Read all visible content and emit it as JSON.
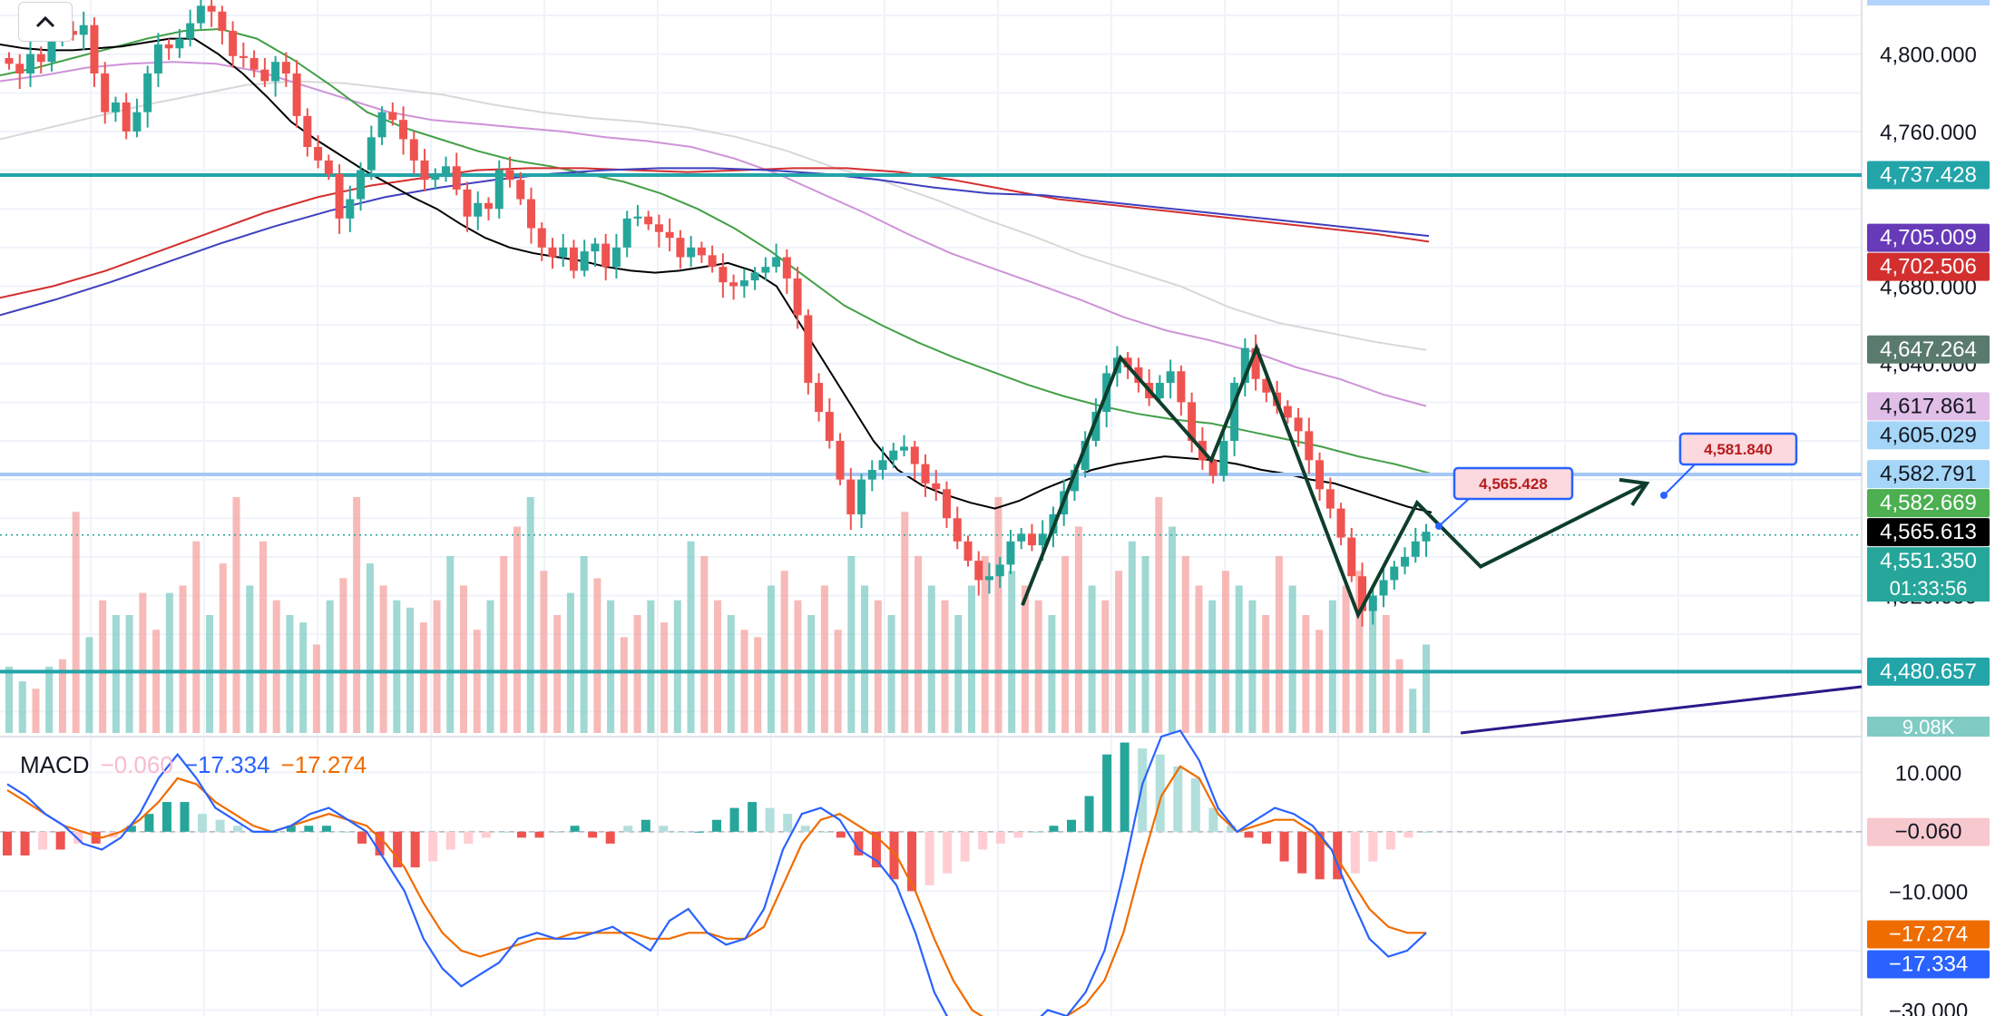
{
  "chart_data": {
    "type": "candlestick",
    "symbol_context": "Price chart with volume, moving averages and MACD",
    "price_axis": {
      "ylim": [
        4448,
        4828
      ],
      "ticks": [
        "4,800.000",
        "4,760.000",
        "4,680.000",
        "4,520.000"
      ],
      "tick_values": [
        4800,
        4760,
        4680,
        4520
      ]
    },
    "price_labels": [
      {
        "text": "4,737.428",
        "value": 4737.428,
        "color": "#22a4a9"
      },
      {
        "text": "4,705.009",
        "value": 4705.009,
        "color": "#673ab7"
      },
      {
        "text": "4,702.506",
        "value": 4702.506,
        "color": "#d32f2f"
      },
      {
        "text": "4,647.264",
        "value": 4647.264,
        "color": "#5a7a6e"
      },
      {
        "text": "4,617.861",
        "value": 4617.861,
        "color": "#e1bee7",
        "dark_text": true
      },
      {
        "text": "4,605.029",
        "value": 4605.029,
        "color": "#a5d6f7",
        "dark_text": true
      },
      {
        "text": "4,582.791",
        "value": 4582.791,
        "color": "#a5d6f7",
        "dark_text": true
      },
      {
        "text": "4,582.669",
        "value": 4582.669,
        "color": "#4caf50"
      },
      {
        "text": "4,565.613",
        "value": 4565.613,
        "color": "#000000"
      },
      {
        "text": "4,551.350",
        "value": 4551.35,
        "color": "#26a69a"
      },
      {
        "text": "4,480.657",
        "value": 4480.657,
        "color": "#22a4a9"
      }
    ],
    "countdown": "01:33:56",
    "volume_label": "9.08K",
    "horizontal_lines": [
      {
        "value": 4737.428,
        "color": "#22a4a9",
        "width": 4
      },
      {
        "value": 4582.791,
        "color": "#a5c8f5",
        "width": 3
      },
      {
        "value": 4582.669,
        "color": "#a5c8f5",
        "width": 4
      },
      {
        "value": 4480.657,
        "color": "#22a4a9",
        "width": 4
      }
    ],
    "current_price": 4551.35,
    "callouts": [
      {
        "text": "4,565.428",
        "value": 4565.428
      },
      {
        "text": "4,581.840",
        "value": 4581.84
      }
    ],
    "pattern_zigzag": [
      4515,
      4643,
      4590,
      4648,
      4510,
      4568,
      4535,
      4578
    ],
    "candles": [
      4795,
      4790,
      4800,
      4796,
      4808,
      4812,
      4810,
      4815,
      4790,
      4770,
      4775,
      4760,
      4770,
      4790,
      4805,
      4803,
      4808,
      4816,
      4825,
      4822,
      4812,
      4799,
      4798,
      4792,
      4786,
      4796,
      4790,
      4768,
      4752,
      4745,
      4738,
      4715,
      4725,
      4740,
      4757,
      4770,
      4766,
      4756,
      4745,
      4735,
      4738,
      4742,
      4730,
      4716,
      4723,
      4720,
      4740,
      4735,
      4725,
      4710,
      4700,
      4695,
      4700,
      4688,
      4698,
      4702,
      4690,
      4700,
      4715,
      4716,
      4712,
      4708,
      4705,
      4695,
      4700,
      4696,
      4690,
      4682,
      4680,
      4683,
      4687,
      4690,
      4695,
      4684,
      4665,
      4630,
      4615,
      4600,
      4580,
      4562,
      4580,
      4585,
      4590,
      4595,
      4597,
      4588,
      4578,
      4575,
      4560,
      4548,
      4538,
      4528,
      4530,
      4536,
      4548,
      4552,
      4546,
      4552,
      4562,
      4574,
      4585,
      4600,
      4615,
      4635,
      4643,
      4638,
      4630,
      4622,
      4630,
      4636,
      4620,
      4600,
      4590,
      4582,
      4600,
      4630,
      4648,
      4632,
      4625,
      4618,
      4612,
      4605,
      4590,
      4575,
      4565,
      4550,
      4530,
      4512,
      4520,
      4528,
      4535,
      4540,
      4548,
      4553
    ],
    "sma_black": [
      4805,
      4803,
      4802,
      4802,
      4803,
      4804,
      4806,
      4808,
      4808,
      4800,
      4790,
      4778,
      4765,
      4756,
      4748,
      4740,
      4733,
      4726,
      4720,
      4712,
      4705,
      4700,
      4697,
      4695,
      4693,
      4690,
      4688,
      4687,
      4688,
      4690,
      4692,
      4688,
      4680,
      4660,
      4640,
      4620,
      4600,
      4585,
      4577,
      4572,
      4568,
      4565,
      4569,
      4575,
      4580,
      4585,
      4588,
      4590,
      4592,
      4591,
      4590,
      4588,
      4585,
      4583,
      4580,
      4578,
      4574,
      4570,
      4566,
      4563
    ],
    "ma_green": [
      4789,
      4793,
      4798,
      4803,
      4808,
      4812,
      4813,
      4808,
      4797,
      4784,
      4770,
      4762,
      4756,
      4750,
      4745,
      4742,
      4738,
      4734,
      4728,
      4720,
      4710,
      4698,
      4684,
      4670,
      4660,
      4651,
      4643,
      4636,
      4629,
      4623,
      4618,
      4614,
      4611,
      4609,
      4605,
      4601,
      4597,
      4592,
      4588,
      4583
    ],
    "ma_pink": [
      4786,
      4789,
      4793,
      4795,
      4796,
      4795,
      4791,
      4784,
      4777,
      4770,
      4766,
      4764,
      4762,
      4760,
      4757,
      4755,
      4752,
      4746,
      4738,
      4728,
      4718,
      4707,
      4697,
      4689,
      4681,
      4673,
      4664,
      4657,
      4652,
      4646,
      4638,
      4632,
      4624,
      4618
    ],
    "ma_lightgray": [
      4756,
      4762,
      4768,
      4774,
      4779,
      4784,
      4786,
      4785,
      4782,
      4779,
      4774,
      4770,
      4767,
      4765,
      4762,
      4757,
      4750,
      4741,
      4734,
      4725,
      4715,
      4706,
      4696,
      4688,
      4680,
      4669,
      4661,
      4656,
      4651,
      4647
    ],
    "ma_red": [
      4674,
      4680,
      4688,
      4698,
      4708,
      4718,
      4726,
      4732,
      4736,
      4740,
      4741,
      4741,
      4740,
      4739,
      4740,
      4741,
      4741,
      4739,
      4735,
      4730,
      4725,
      4722,
      4719,
      4716,
      4713,
      4710,
      4707,
      4703
    ],
    "ma_purple": [
      4665,
      4673,
      4682,
      4692,
      4702,
      4711,
      4719,
      4726,
      4731,
      4735,
      4738,
      4740,
      4741,
      4741,
      4740,
      4738,
      4735,
      4731,
      4728,
      4727,
      4724,
      4721,
      4718,
      4715,
      4712,
      4709,
      4706
    ],
    "volume": [
      4.5,
      3.5,
      3,
      4.5,
      5,
      15,
      6.5,
      9,
      8,
      8,
      9.5,
      7,
      9.5,
      10,
      13,
      8,
      11.5,
      16,
      10,
      13,
      9,
      8,
      7.5,
      6,
      9,
      10.5,
      16,
      11.5,
      10,
      9,
      8.5,
      7.5,
      9,
      12,
      10,
      7,
      9,
      12,
      14,
      16,
      11,
      8,
      9.5,
      12,
      10.5,
      9,
      6.5,
      8,
      9,
      7.5,
      9,
      13,
      12,
      9,
      8,
      7,
      6.5,
      10,
      11,
      9,
      8,
      10,
      7,
      12,
      10,
      9,
      8,
      15,
      12,
      10,
      9,
      8,
      10,
      12,
      16,
      11,
      10,
      9,
      8,
      12,
      14,
      10,
      9,
      11,
      13,
      12,
      16,
      14,
      12,
      10,
      9,
      11,
      10,
      9,
      8,
      12,
      10,
      8,
      7,
      9,
      10,
      11,
      9,
      8,
      5,
      3,
      6
    ],
    "macd": {
      "name": "MACD",
      "hist_value": "−0.060",
      "macd_value": "−17.334",
      "signal_value": "−17.274",
      "hist_color": "#f8bbd0",
      "macd_color": "#2962ff",
      "signal_color": "#ef6c00",
      "ylim": [
        -31,
        16
      ],
      "ticks": [
        "10.000",
        "−10.000",
        "−30.000"
      ],
      "tick_values": [
        10,
        -10,
        -30
      ],
      "labels": [
        {
          "text": "−0.060",
          "value": -0.06,
          "color": "#f8c8cf",
          "dark_text": true
        },
        {
          "text": "−17.274",
          "value": -17.274,
          "color": "#ef6c00"
        },
        {
          "text": "−17.334",
          "value": -17.334,
          "color": "#2962ff"
        }
      ],
      "macd_line": [
        8,
        6,
        3,
        1,
        -2,
        -3,
        -1,
        3,
        9,
        13,
        9,
        4,
        2,
        0,
        0,
        1,
        3,
        4,
        2,
        0,
        -5,
        -10,
        -18,
        -23,
        -26,
        -24,
        -22,
        -18,
        -17,
        -18,
        -18,
        -17,
        -16,
        -18,
        -20,
        -15,
        -13,
        -17,
        -19,
        -18,
        -13,
        -3,
        3,
        4,
        2,
        -3,
        -5,
        -9,
        -17,
        -27,
        -33,
        -34,
        -34,
        -33,
        -33,
        -30,
        -31,
        -27,
        -20,
        -7,
        8,
        16,
        17,
        12,
        4,
        0,
        2,
        4,
        3,
        1,
        -3,
        -11,
        -18,
        -21,
        -20,
        -17
      ],
      "signal_line": [
        7,
        5,
        3,
        1,
        0,
        -1,
        0,
        2,
        5,
        9,
        8,
        5,
        3,
        1,
        0,
        1,
        2,
        3,
        2,
        1,
        -2,
        -6,
        -12,
        -17,
        -20,
        -21,
        -20,
        -19,
        -18,
        -18,
        -17,
        -17,
        -17,
        -17,
        -18,
        -18,
        -17,
        -17,
        -18,
        -18,
        -16,
        -9,
        -2,
        2,
        3,
        1,
        -1,
        -4,
        -10,
        -18,
        -25,
        -30,
        -32,
        -33,
        -33,
        -32,
        -31,
        -29,
        -25,
        -17,
        -5,
        6,
        11,
        9,
        3,
        0,
        1,
        2,
        2,
        0,
        -3,
        -8,
        -13,
        -16,
        -17,
        -17
      ],
      "histogram": [
        -4,
        -4,
        -3,
        -3,
        -2,
        -2,
        -1,
        1,
        3,
        5,
        5,
        3,
        2,
        1,
        0,
        0,
        1,
        1,
        1,
        0,
        -2,
        -4,
        -6,
        -6,
        -5,
        -3,
        -2,
        -1,
        0,
        -1,
        -1,
        0,
        1,
        -1,
        -2,
        1,
        2,
        1,
        0,
        0,
        2,
        4,
        5,
        4,
        3,
        1,
        0,
        -1,
        -4,
        -6,
        -8,
        -10,
        -9,
        -7,
        -5,
        -3,
        -2,
        -1,
        0,
        1,
        2,
        6,
        13,
        15,
        14,
        13,
        11,
        9,
        4,
        1,
        -1,
        -2,
        -5,
        -7,
        -8,
        -8,
        -7,
        -5,
        -3,
        -1,
        0
      ]
    }
  }
}
